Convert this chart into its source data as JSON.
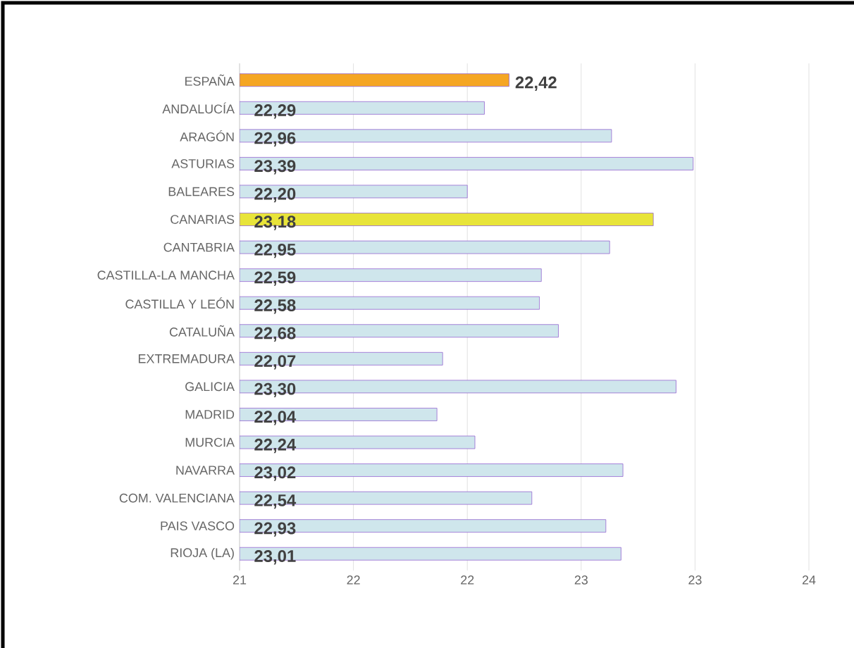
{
  "chart_data": {
    "type": "bar",
    "orientation": "horizontal",
    "categories": [
      "ESPAÑA",
      "ANDALUCÍA",
      "ARAGÓN",
      "ASTURIAS",
      "BALEARES",
      "CANARIAS",
      "CANTABRIA",
      "CASTILLA-LA MANCHA",
      "CASTILLA Y LEÓN",
      "CATALUÑA",
      "EXTREMADURA",
      "GALICIA",
      "MADRID",
      "MURCIA",
      "NAVARRA",
      "COM. VALENCIANA",
      "PAIS VASCO",
      "RIOJA (LA)"
    ],
    "values": [
      22.42,
      22.29,
      22.96,
      23.39,
      22.2,
      23.18,
      22.95,
      22.59,
      22.58,
      22.68,
      22.07,
      23.3,
      22.04,
      22.24,
      23.02,
      22.54,
      22.93,
      23.01
    ],
    "value_labels": [
      "22,42",
      "22,29",
      "22,96",
      "23,39",
      "22,20",
      "23,18",
      "22,95",
      "22,59",
      "22,58",
      "22,68",
      "22,07",
      "23,30",
      "22,04",
      "22,24",
      "23,02",
      "22,54",
      "22,93",
      "23,01"
    ],
    "colors": [
      "#f5a623",
      "#cfe6ec",
      "#cfe6ec",
      "#cfe6ec",
      "#cfe6ec",
      "#e8e43a",
      "#cfe6ec",
      "#cfe6ec",
      "#cfe6ec",
      "#cfe6ec",
      "#cfe6ec",
      "#cfe6ec",
      "#cfe6ec",
      "#cfe6ec",
      "#cfe6ec",
      "#cfe6ec",
      "#cfe6ec",
      "#cfe6ec"
    ],
    "xlim": [
      21,
      24
    ],
    "xticks": [
      21,
      {
        "value": 21.6,
        "label": "22"
      },
      {
        "value": 22.2,
        "label": "22"
      },
      {
        "value": 22.8,
        "label": "23"
      },
      {
        "value": 23.4,
        "label": "23"
      },
      24
    ],
    "grid": "x"
  }
}
